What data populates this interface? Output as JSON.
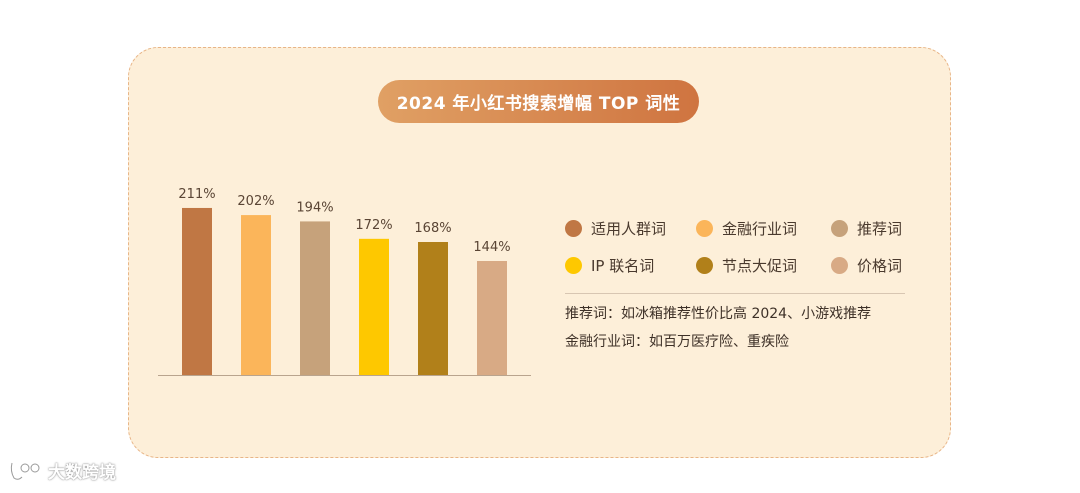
{
  "colors": {
    "card_bg": "#fdefd9",
    "card_border": "#e8b587",
    "title_gradient_start": "#e0a064",
    "title_gradient_end": "#cf7440",
    "axis": "#b9a48e",
    "label_text": "#5a4535"
  },
  "chart_data": {
    "type": "bar",
    "title": "2024 年小红书搜索增幅 TOP 词性",
    "categories": [
      "适用人群词",
      "金融行业词",
      "推荐词",
      "IP 联名词",
      "节点大促词",
      "价格词"
    ],
    "values": [
      211,
      202,
      194,
      172,
      168,
      144
    ],
    "value_labels": [
      "211%",
      "202%",
      "194%",
      "172%",
      "168%",
      "144%"
    ],
    "unit": "%",
    "colors": [
      "#c07744",
      "#fbb55a",
      "#c6a27b",
      "#fec800",
      "#b1801a",
      "#d8aa85"
    ],
    "ylim": [
      0,
      240
    ],
    "grid": false,
    "legend_position": "right",
    "xlabel": "",
    "ylabel": ""
  },
  "legend": [
    {
      "label": "适用人群词",
      "color": "#c07744"
    },
    {
      "label": "金融行业词",
      "color": "#fbb55a"
    },
    {
      "label": "推荐词",
      "color": "#c6a27b"
    },
    {
      "label": "IP 联名词",
      "color": "#fec800"
    },
    {
      "label": "节点大促词",
      "color": "#b1801a"
    },
    {
      "label": "价格词",
      "color": "#d8aa85"
    }
  ],
  "notes": [
    "推荐词：如冰箱推荐性价比高 2024、小游戏推荐",
    "金融行业词：如百万医疗险、重疾险"
  ],
  "watermark": {
    "text": "大数跨境",
    "icon": "logo-icon"
  }
}
